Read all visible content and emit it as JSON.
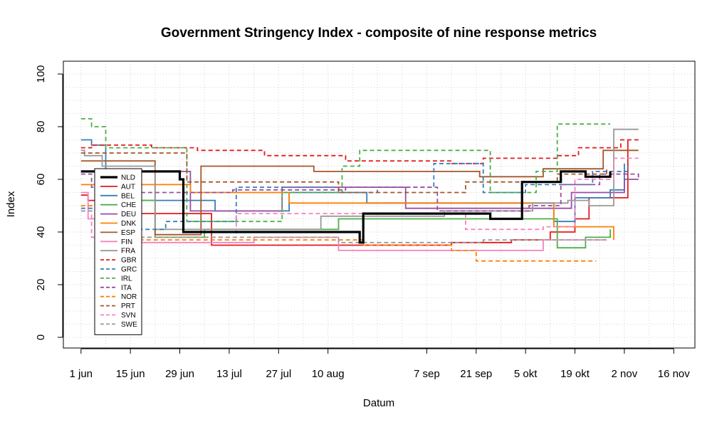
{
  "chart_data": {
    "type": "line",
    "title": "Government Stringency Index - composite of nine response metrics",
    "xlabel": "Datum",
    "ylabel": "Index",
    "xlim": [
      "2020-05-27",
      "2020-11-22"
    ],
    "ylim": [
      0,
      100
    ],
    "x_ticks": [
      {
        "date": "2020-06-01",
        "label": "1 jun"
      },
      {
        "date": "2020-06-15",
        "label": "15 jun"
      },
      {
        "date": "2020-06-29",
        "label": "29 jun"
      },
      {
        "date": "2020-07-13",
        "label": "13 jul"
      },
      {
        "date": "2020-07-27",
        "label": "27 jul"
      },
      {
        "date": "2020-08-10",
        "label": "10 aug"
      },
      {
        "date": "2020-09-07",
        "label": "7 sep"
      },
      {
        "date": "2020-09-21",
        "label": "21 sep"
      },
      {
        "date": "2020-10-05",
        "label": "5 okt"
      },
      {
        "date": "2020-10-19",
        "label": "19 okt"
      },
      {
        "date": "2020-11-02",
        "label": "2 nov"
      },
      {
        "date": "2020-11-16",
        "label": "16 nov"
      }
    ],
    "y_ticks": [
      0,
      20,
      40,
      60,
      80,
      100
    ],
    "grid": true,
    "legend_position": "left",
    "series": [
      {
        "name": "NLD",
        "color": "#000000",
        "style": "solid",
        "bold": true,
        "points": [
          [
            "2020-06-01",
            63
          ],
          [
            "2020-06-29",
            60
          ],
          [
            "2020-06-30",
            40
          ],
          [
            "2020-08-18",
            40
          ],
          [
            "2020-08-19",
            36
          ],
          [
            "2020-08-20",
            47
          ],
          [
            "2020-09-23",
            47
          ],
          [
            "2020-09-25",
            45
          ],
          [
            "2020-10-03",
            45
          ],
          [
            "2020-10-04",
            59
          ],
          [
            "2020-10-14",
            59
          ],
          [
            "2020-10-15",
            63
          ],
          [
            "2020-10-21",
            63
          ],
          [
            "2020-10-22",
            61
          ],
          [
            "2020-10-28",
            61
          ],
          [
            "2020-10-29",
            63
          ]
        ]
      },
      {
        "name": "AUT",
        "color": "#e41a1c",
        "style": "solid",
        "points": [
          [
            "2020-06-01",
            54
          ],
          [
            "2020-06-03",
            52
          ],
          [
            "2020-06-08",
            47
          ],
          [
            "2020-07-07",
            47
          ],
          [
            "2020-07-08",
            35
          ],
          [
            "2020-09-07",
            35
          ],
          [
            "2020-09-14",
            36
          ],
          [
            "2020-10-01",
            37
          ],
          [
            "2020-10-12",
            40
          ],
          [
            "2020-10-19",
            45
          ],
          [
            "2020-10-23",
            53
          ],
          [
            "2020-11-03",
            75
          ]
        ]
      },
      {
        "name": "BEL",
        "color": "#377eb8",
        "style": "solid",
        "points": [
          [
            "2020-06-01",
            75
          ],
          [
            "2020-06-04",
            73
          ],
          [
            "2020-06-08",
            63
          ],
          [
            "2020-06-14",
            52
          ],
          [
            "2020-07-08",
            52
          ],
          [
            "2020-07-09",
            48
          ],
          [
            "2020-07-29",
            48
          ],
          [
            "2020-07-30",
            55
          ],
          [
            "2020-08-20",
            55
          ],
          [
            "2020-08-21",
            51
          ],
          [
            "2020-10-10",
            51
          ],
          [
            "2020-10-13",
            44
          ],
          [
            "2020-10-19",
            53
          ],
          [
            "2020-10-29",
            56
          ],
          [
            "2020-11-02",
            66
          ]
        ]
      },
      {
        "name": "CHE",
        "color": "#4daf4a",
        "style": "solid",
        "points": [
          [
            "2020-06-01",
            63
          ],
          [
            "2020-06-06",
            52
          ],
          [
            "2020-06-22",
            38
          ],
          [
            "2020-07-06",
            41
          ],
          [
            "2020-08-13",
            45
          ],
          [
            "2020-10-14",
            34
          ],
          [
            "2020-10-22",
            38
          ],
          [
            "2020-10-29",
            41
          ]
        ]
      },
      {
        "name": "DEU",
        "color": "#984ea3",
        "style": "solid",
        "points": [
          [
            "2020-06-01",
            63
          ],
          [
            "2020-07-01",
            63
          ],
          [
            "2020-07-02",
            48
          ],
          [
            "2020-07-25",
            48
          ],
          [
            "2020-07-28",
            57
          ],
          [
            "2020-08-22",
            57
          ],
          [
            "2020-09-01",
            49
          ],
          [
            "2020-10-13",
            49
          ],
          [
            "2020-10-18",
            55
          ],
          [
            "2020-11-02",
            60
          ],
          [
            "2020-11-06",
            60
          ]
        ]
      },
      {
        "name": "DNK",
        "color": "#ff7f00",
        "style": "solid",
        "points": [
          [
            "2020-06-01",
            58
          ],
          [
            "2020-07-01",
            58
          ],
          [
            "2020-07-02",
            55
          ],
          [
            "2020-07-29",
            55
          ],
          [
            "2020-07-30",
            51
          ],
          [
            "2020-10-12",
            51
          ],
          [
            "2020-10-13",
            42
          ],
          [
            "2020-10-29",
            42
          ],
          [
            "2020-10-30",
            37
          ]
        ]
      },
      {
        "name": "ESP",
        "color": "#a65628",
        "style": "solid",
        "points": [
          [
            "2020-06-01",
            67
          ],
          [
            "2020-06-21",
            67
          ],
          [
            "2020-06-22",
            39
          ],
          [
            "2020-07-04",
            39
          ],
          [
            "2020-07-05",
            65
          ],
          [
            "2020-08-05",
            65
          ],
          [
            "2020-08-06",
            63
          ],
          [
            "2020-09-21",
            63
          ],
          [
            "2020-09-22",
            61
          ],
          [
            "2020-10-09",
            61
          ],
          [
            "2020-10-10",
            64
          ],
          [
            "2020-10-25",
            64
          ],
          [
            "2020-10-27",
            71
          ],
          [
            "2020-11-06",
            71
          ]
        ]
      },
      {
        "name": "FIN",
        "color": "#f781bf",
        "style": "solid",
        "points": [
          [
            "2020-06-01",
            55
          ],
          [
            "2020-06-03",
            45
          ],
          [
            "2020-06-06",
            36
          ],
          [
            "2020-07-15",
            36
          ],
          [
            "2020-07-20",
            38
          ],
          [
            "2020-08-12",
            38
          ],
          [
            "2020-08-13",
            33
          ],
          [
            "2020-10-05",
            33
          ],
          [
            "2020-10-10",
            37
          ],
          [
            "2020-10-28",
            37
          ]
        ]
      },
      {
        "name": "FRA",
        "color": "#999999",
        "style": "solid",
        "points": [
          [
            "2020-06-01",
            71
          ],
          [
            "2020-06-02",
            69
          ],
          [
            "2020-06-07",
            65
          ],
          [
            "2020-06-17",
            65
          ],
          [
            "2020-06-22",
            41
          ],
          [
            "2020-08-07",
            41
          ],
          [
            "2020-08-08",
            46
          ],
          [
            "2020-08-30",
            46
          ],
          [
            "2020-09-12",
            48
          ],
          [
            "2020-10-07",
            51
          ],
          [
            "2020-10-17",
            52
          ],
          [
            "2020-10-23",
            50
          ],
          [
            "2020-10-30",
            79
          ],
          [
            "2020-11-06",
            79
          ]
        ]
      },
      {
        "name": "GBR",
        "color": "#e41a1c",
        "style": "dashed",
        "points": [
          [
            "2020-06-01",
            72
          ],
          [
            "2020-06-04",
            73
          ],
          [
            "2020-06-21",
            72
          ],
          [
            "2020-07-04",
            71
          ],
          [
            "2020-07-23",
            69
          ],
          [
            "2020-08-15",
            67
          ],
          [
            "2020-09-14",
            66
          ],
          [
            "2020-09-23",
            68
          ],
          [
            "2020-10-14",
            69
          ],
          [
            "2020-10-20",
            72
          ],
          [
            "2020-11-01",
            75
          ],
          [
            "2020-11-06",
            75
          ]
        ]
      },
      {
        "name": "GRC",
        "color": "#377eb8",
        "style": "dashed",
        "points": [
          [
            "2020-06-01",
            49
          ],
          [
            "2020-06-17",
            41
          ],
          [
            "2020-06-25",
            44
          ],
          [
            "2020-07-15",
            57
          ],
          [
            "2020-08-13",
            55
          ],
          [
            "2020-08-24",
            57
          ],
          [
            "2020-09-09",
            66
          ],
          [
            "2020-09-23",
            55
          ],
          [
            "2020-10-05",
            58
          ],
          [
            "2020-10-24",
            63
          ],
          [
            "2020-11-03",
            65
          ]
        ]
      },
      {
        "name": "IRL",
        "color": "#4daf4a",
        "style": "dashed",
        "points": [
          [
            "2020-06-01",
            83
          ],
          [
            "2020-06-04",
            80
          ],
          [
            "2020-06-08",
            72
          ],
          [
            "2020-06-29",
            72
          ],
          [
            "2020-07-01",
            44
          ],
          [
            "2020-07-21",
            44
          ],
          [
            "2020-07-28",
            55
          ],
          [
            "2020-08-08",
            55
          ],
          [
            "2020-08-14",
            65
          ],
          [
            "2020-08-19",
            71
          ],
          [
            "2020-09-23",
            71
          ],
          [
            "2020-09-25",
            55
          ],
          [
            "2020-10-08",
            63
          ],
          [
            "2020-10-14",
            81
          ],
          [
            "2020-10-29",
            81
          ]
        ]
      },
      {
        "name": "ITA",
        "color": "#984ea3",
        "style": "dashed",
        "points": [
          [
            "2020-06-01",
            62
          ],
          [
            "2020-06-04",
            57
          ],
          [
            "2020-06-15",
            55
          ],
          [
            "2020-07-14",
            56
          ],
          [
            "2020-08-15",
            57
          ],
          [
            "2020-09-10",
            48
          ],
          [
            "2020-10-06",
            50
          ],
          [
            "2020-10-15",
            58
          ],
          [
            "2020-10-26",
            62
          ],
          [
            "2020-11-06",
            60
          ]
        ]
      },
      {
        "name": "NOR",
        "color": "#ff7f00",
        "style": "dashed",
        "points": [
          [
            "2020-06-01",
            50
          ],
          [
            "2020-06-16",
            37
          ],
          [
            "2020-08-10",
            37
          ],
          [
            "2020-08-20",
            35
          ],
          [
            "2020-09-14",
            33
          ],
          [
            "2020-09-21",
            29
          ],
          [
            "2020-10-25",
            29
          ]
        ]
      },
      {
        "name": "PRT",
        "color": "#a65628",
        "style": "dashed",
        "points": [
          [
            "2020-06-01",
            70
          ],
          [
            "2020-07-01",
            59
          ],
          [
            "2020-08-13",
            55
          ],
          [
            "2020-09-18",
            59
          ],
          [
            "2020-10-14",
            62
          ],
          [
            "2020-10-28",
            64
          ]
        ]
      },
      {
        "name": "SVN",
        "color": "#f781bf",
        "style": "dashed",
        "points": [
          [
            "2020-06-01",
            48
          ],
          [
            "2020-06-04",
            38
          ],
          [
            "2020-07-15",
            47
          ],
          [
            "2020-09-18",
            41
          ],
          [
            "2020-10-10",
            42
          ],
          [
            "2020-10-19",
            60
          ],
          [
            "2020-10-30",
            68
          ],
          [
            "2020-11-06",
            68
          ]
        ]
      },
      {
        "name": "SWE",
        "color": "#999999",
        "style": "dashed",
        "points": [
          [
            "2020-06-01",
            48
          ],
          [
            "2020-06-14",
            38
          ],
          [
            "2020-08-13",
            36
          ],
          [
            "2020-09-23",
            37
          ],
          [
            "2020-10-20",
            37
          ],
          [
            "2020-10-28",
            37
          ]
        ]
      }
    ]
  }
}
